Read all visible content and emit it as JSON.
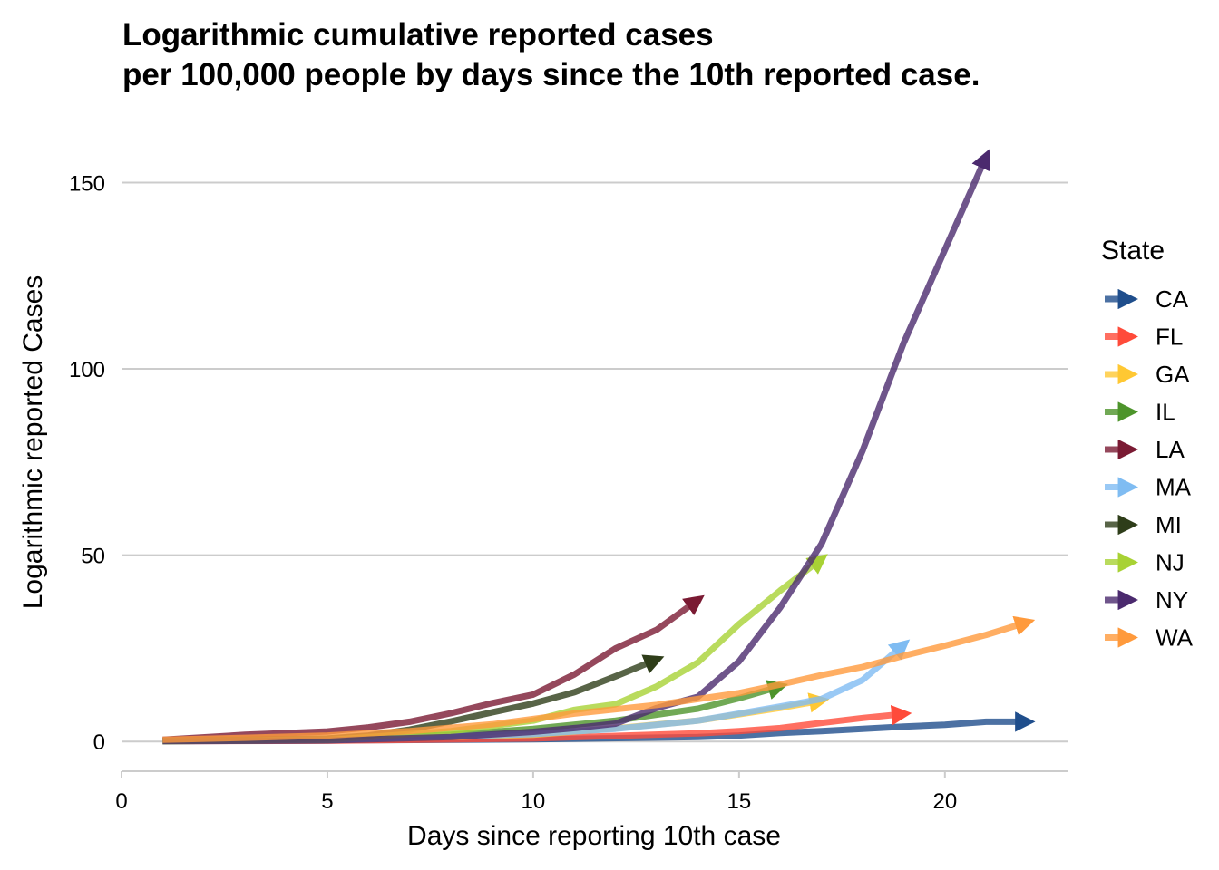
{
  "chart_data": {
    "type": "line",
    "title_lines": [
      "Logarithmic cumulative reported cases",
      "per 100,000 people by days since the 10th reported case."
    ],
    "xlabel": "Days since reporting 10th case",
    "ylabel": "Logarithmic reported Cases",
    "xlim": [
      0,
      23
    ],
    "ylim": [
      -7,
      163
    ],
    "x_ticks": [
      0,
      5,
      10,
      15,
      20
    ],
    "x_tick_labels": [
      "0",
      "5",
      "10",
      "15",
      "20"
    ],
    "y_ticks": [
      0,
      50,
      100,
      150
    ],
    "y_tick_labels": [
      "0",
      "50",
      "100",
      "150"
    ],
    "grid": "horizontal",
    "legend": {
      "title": "State",
      "position": "right"
    },
    "series": [
      {
        "name": "CA",
        "color": "#1f4e8c",
        "x": [
          1,
          5,
          10,
          14,
          15,
          16,
          17,
          18,
          19,
          20,
          21,
          22
        ],
        "y": [
          0.1,
          0.3,
          0.6,
          1.2,
          1.6,
          2.3,
          2.8,
          3.4,
          4.0,
          4.5,
          5.3,
          5.3
        ]
      },
      {
        "name": "FL",
        "color": "#ff4b3a",
        "x": [
          1,
          5,
          10,
          14,
          15,
          16,
          17,
          18,
          19
        ],
        "y": [
          0.1,
          0.2,
          0.8,
          2.2,
          2.8,
          3.6,
          5.0,
          6.3,
          7.4
        ]
      },
      {
        "name": "GA",
        "color": "#ffc833",
        "x": [
          1,
          5,
          10,
          12,
          14,
          15,
          16,
          17
        ],
        "y": [
          0.1,
          0.4,
          1.8,
          3.5,
          5.6,
          7.3,
          9.0,
          11.0
        ]
      },
      {
        "name": "IL",
        "color": "#4d942b",
        "x": [
          1,
          5,
          8,
          10,
          12,
          14,
          15,
          16
        ],
        "y": [
          0.1,
          0.4,
          1.8,
          3.4,
          5.6,
          8.8,
          11.6,
          14.8
        ]
      },
      {
        "name": "LA",
        "color": "#7a1a33",
        "x": [
          1,
          3,
          5,
          6,
          7,
          8,
          9,
          10,
          11,
          12,
          13,
          14
        ],
        "y": [
          0.5,
          1.8,
          2.7,
          3.8,
          5.3,
          7.6,
          10.3,
          12.6,
          18.0,
          25.0,
          30.0,
          38.0
        ]
      },
      {
        "name": "MA",
        "color": "#7fbcf2",
        "x": [
          1,
          5,
          10,
          12,
          14,
          15,
          16,
          17,
          18,
          19
        ],
        "y": [
          0.1,
          0.4,
          2.0,
          3.4,
          5.6,
          7.5,
          9.4,
          11.4,
          16.5,
          26.0
        ]
      },
      {
        "name": "MI",
        "color": "#2e3d19",
        "x": [
          1,
          5,
          6,
          7,
          8,
          9,
          10,
          11,
          12,
          13
        ],
        "y": [
          0.1,
          0.8,
          1.6,
          3.2,
          5.4,
          7.8,
          10.2,
          13.2,
          17.5,
          22.0
        ]
      },
      {
        "name": "NJ",
        "color": "#a8d234",
        "x": [
          1,
          5,
          8,
          10,
          11,
          12,
          13,
          14,
          15,
          16,
          17
        ],
        "y": [
          0.1,
          0.4,
          2.8,
          5.6,
          8.5,
          10.0,
          14.8,
          21.2,
          31.5,
          40.5,
          49.0
        ]
      },
      {
        "name": "NY",
        "color": "#4b2a6e",
        "x": [
          1,
          5,
          8,
          10,
          11,
          12,
          13,
          14,
          15,
          16,
          17,
          18,
          19,
          20,
          21
        ],
        "y": [
          0.1,
          0.3,
          1.2,
          2.6,
          3.6,
          4.8,
          9.0,
          12.0,
          21.5,
          36.0,
          53.0,
          78.0,
          107.0,
          132.0,
          157.0
        ]
      },
      {
        "name": "WA",
        "color": "#ff9a3c",
        "x": [
          1,
          3,
          5,
          7,
          9,
          11,
          13,
          15,
          16,
          17,
          18,
          19,
          20,
          21,
          22
        ],
        "y": [
          0.5,
          1.0,
          1.6,
          2.8,
          4.6,
          7.5,
          9.8,
          13.0,
          15.3,
          17.8,
          20.0,
          23.0,
          25.7,
          28.6,
          32.0
        ]
      }
    ]
  }
}
